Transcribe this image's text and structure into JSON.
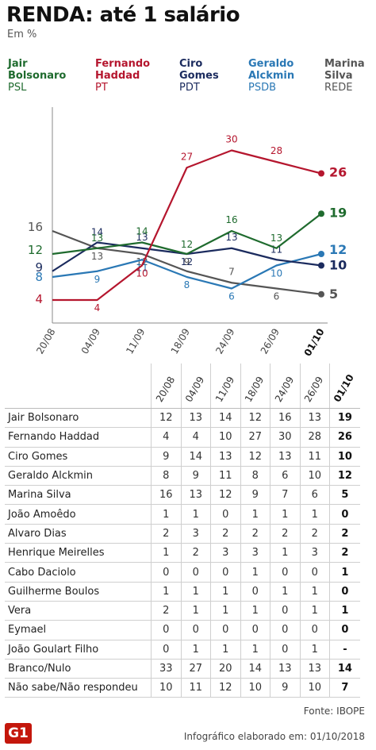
{
  "title": "RENDA: até 1 salário",
  "subtitle": "Em %",
  "legend": [
    {
      "name": "Jair\nBolsonaro",
      "party": "PSL",
      "color": "#1f6b2e"
    },
    {
      "name": "Fernando\nHaddad",
      "party": "PT",
      "color": "#b5162e"
    },
    {
      "name": "Ciro\nGomes",
      "party": "PDT",
      "color": "#1b2b5e"
    },
    {
      "name": "Geraldo\nAlckmin",
      "party": "PSDB",
      "color": "#2a78b5"
    },
    {
      "name": "Marina\nSilva",
      "party": "REDE",
      "color": "#555555"
    }
  ],
  "chart_data": {
    "type": "line",
    "x": [
      "20/08",
      "04/09",
      "11/09",
      "18/09",
      "24/09",
      "26/09",
      "01/10"
    ],
    "ylim": [
      0,
      35
    ],
    "series": [
      {
        "name": "Jair Bolsonaro",
        "color": "#1f6b2e",
        "values": [
          12,
          13,
          14,
          12,
          16,
          13,
          19
        ]
      },
      {
        "name": "Fernando Haddad",
        "color": "#b5162e",
        "values": [
          4,
          4,
          10,
          27,
          30,
          28,
          26
        ]
      },
      {
        "name": "Ciro Gomes",
        "color": "#1b2b5e",
        "values": [
          9,
          14,
          13,
          12,
          13,
          11,
          10
        ]
      },
      {
        "name": "Geraldo Alckmin",
        "color": "#2a78b5",
        "values": [
          8,
          9,
          11,
          8,
          6,
          10,
          12
        ]
      },
      {
        "name": "Marina Silva",
        "color": "#555555",
        "values": [
          16,
          13,
          12,
          9,
          7,
          6,
          5
        ]
      }
    ]
  },
  "table": {
    "columns": [
      "20/08",
      "04/09",
      "11/09",
      "18/09",
      "24/09",
      "26/09",
      "01/10"
    ],
    "rows": [
      {
        "name": "Jair Bolsonaro",
        "values": [
          "12",
          "13",
          "14",
          "12",
          "16",
          "13",
          "19"
        ]
      },
      {
        "name": "Fernando Haddad",
        "values": [
          "4",
          "4",
          "10",
          "27",
          "30",
          "28",
          "26"
        ]
      },
      {
        "name": "Ciro Gomes",
        "values": [
          "9",
          "14",
          "13",
          "12",
          "13",
          "11",
          "10"
        ]
      },
      {
        "name": "Geraldo Alckmin",
        "values": [
          "8",
          "9",
          "11",
          "8",
          "6",
          "10",
          "12"
        ]
      },
      {
        "name": "Marina Silva",
        "values": [
          "16",
          "13",
          "12",
          "9",
          "7",
          "6",
          "5"
        ]
      },
      {
        "name": "João Amoêdo",
        "values": [
          "1",
          "1",
          "0",
          "1",
          "1",
          "1",
          "0"
        ]
      },
      {
        "name": "Alvaro Dias",
        "values": [
          "2",
          "3",
          "2",
          "2",
          "2",
          "2",
          "2"
        ]
      },
      {
        "name": "Henrique Meirelles",
        "values": [
          "1",
          "2",
          "3",
          "3",
          "1",
          "3",
          "2"
        ]
      },
      {
        "name": "Cabo Daciolo",
        "values": [
          "0",
          "0",
          "0",
          "1",
          "0",
          "0",
          "1"
        ]
      },
      {
        "name": "Guilherme Boulos",
        "values": [
          "1",
          "1",
          "1",
          "0",
          "1",
          "1",
          "0"
        ]
      },
      {
        "name": "Vera",
        "values": [
          "2",
          "1",
          "1",
          "1",
          "0",
          "1",
          "1"
        ]
      },
      {
        "name": "Eymael",
        "values": [
          "0",
          "0",
          "0",
          "0",
          "0",
          "0",
          "0"
        ]
      },
      {
        "name": "João Goulart Filho",
        "values": [
          "0",
          "1",
          "1",
          "1",
          "0",
          "1",
          "-"
        ]
      },
      {
        "name": "Branco/Nulo",
        "values": [
          "33",
          "27",
          "20",
          "14",
          "13",
          "13",
          "14"
        ]
      },
      {
        "name": "Não sabe/Não respondeu",
        "values": [
          "10",
          "11",
          "12",
          "10",
          "9",
          "10",
          "7"
        ]
      }
    ]
  },
  "footer": {
    "source": "Fonte: IBOPE",
    "credit": "Infográfico elaborado em: 01/10/2018",
    "logo": "G1"
  }
}
